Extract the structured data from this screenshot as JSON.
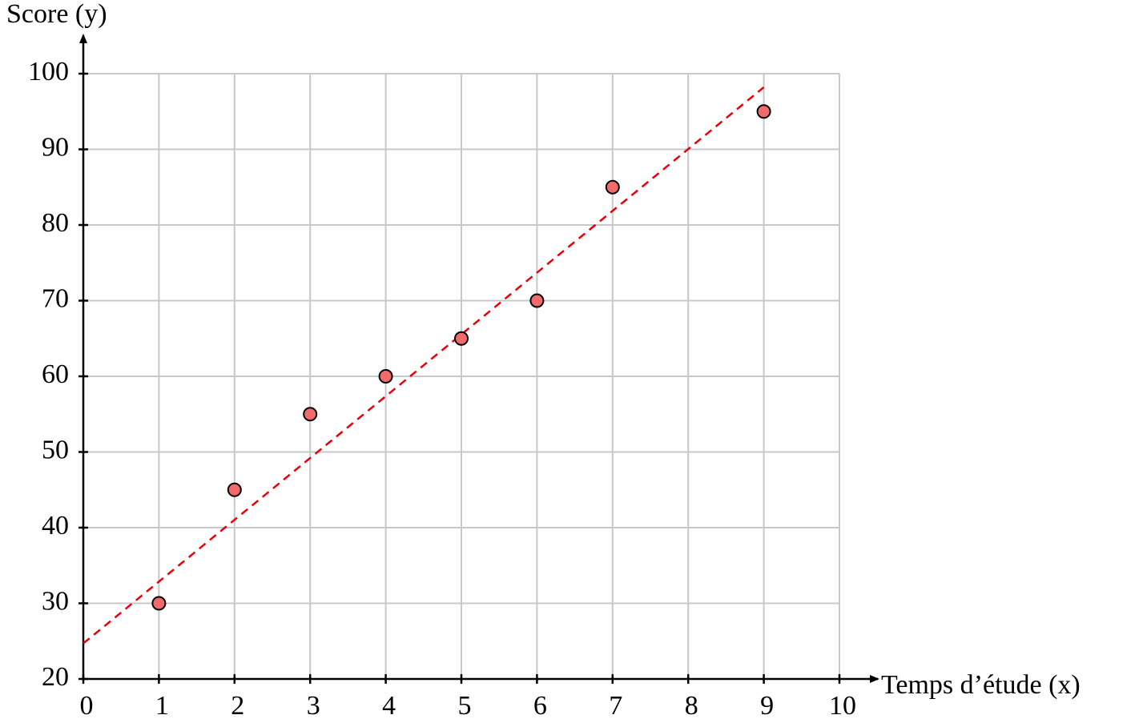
{
  "chart_data": {
    "type": "scatter",
    "xlabel": "Temps d’étude (x)",
    "ylabel": "Score (y)",
    "x": [
      1,
      2,
      3,
      4,
      5,
      6,
      7,
      9
    ],
    "series": [
      {
        "color": "#f26b6b",
        "values": [
          30,
          45,
          55,
          60,
          65,
          70,
          85,
          95
        ]
      }
    ],
    "trend_line": {
      "x": [
        0,
        9
      ],
      "values": [
        24.7,
        98.2
      ],
      "color": "#e8000b",
      "dashed": true
    },
    "xlim": [
      0,
      10
    ],
    "ylim": [
      20,
      100
    ],
    "xticks": [
      0,
      1,
      2,
      3,
      4,
      5,
      6,
      7,
      8,
      9,
      10
    ],
    "yticks": [
      20,
      30,
      40,
      50,
      60,
      70,
      80,
      90,
      100
    ],
    "grid": true
  }
}
